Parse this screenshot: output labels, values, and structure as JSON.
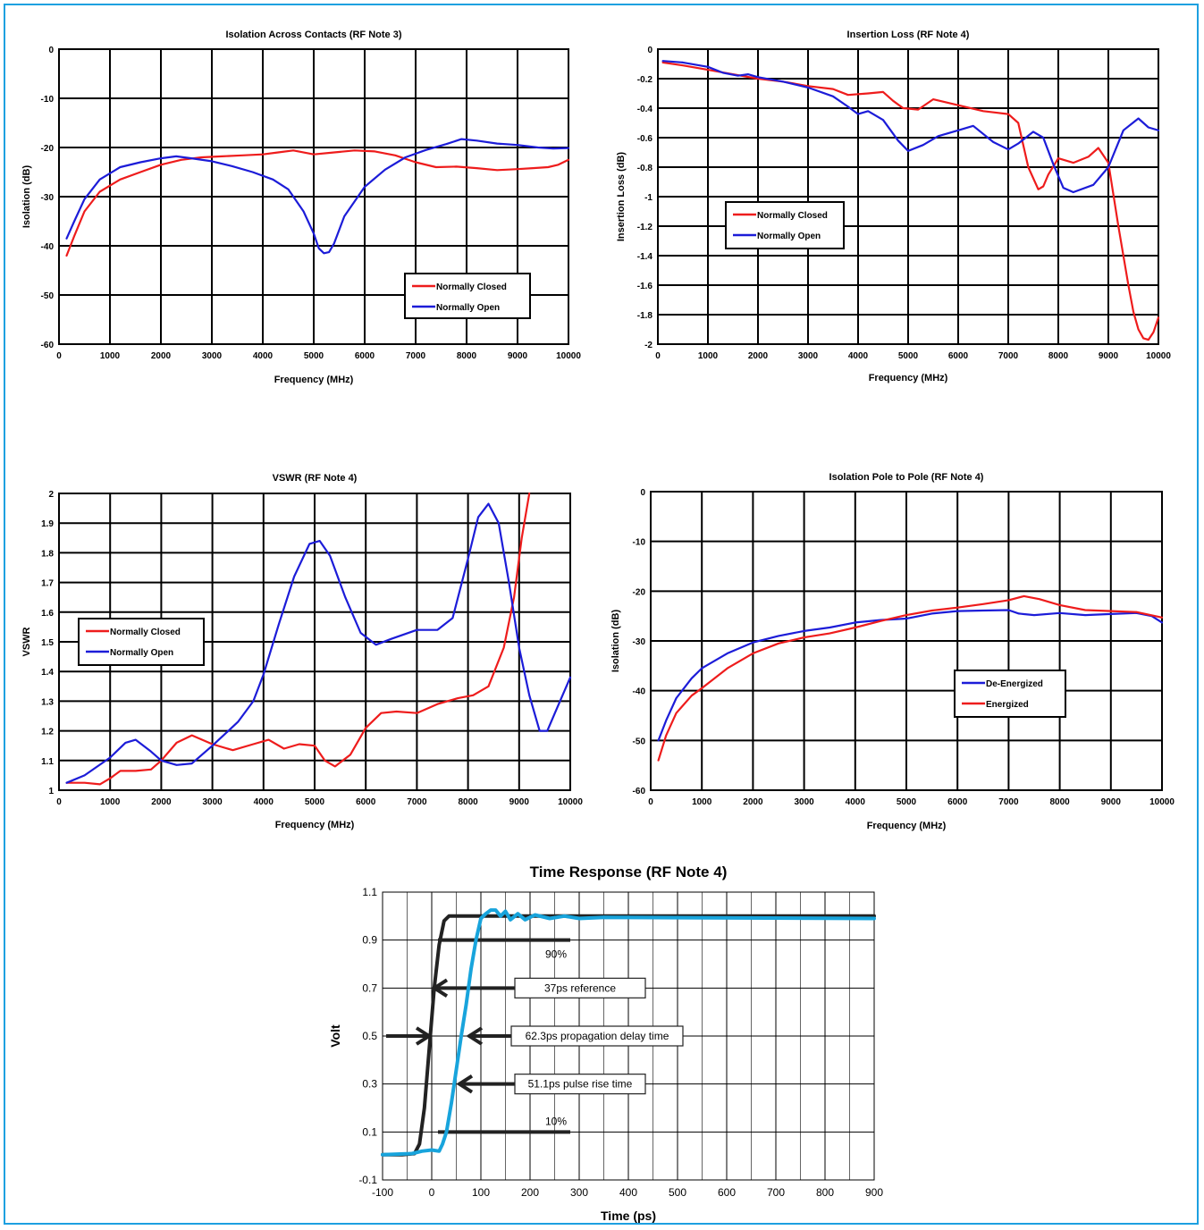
{
  "chart_data": [
    {
      "id": "iso_contacts",
      "type": "line",
      "title": "Isolation Across Contacts (RF Note 3)",
      "xlabel": "Frequency (MHz)",
      "ylabel": "Isolation (dB)",
      "xlim": [
        0,
        10000
      ],
      "ylim": [
        -60,
        0
      ],
      "xticks": [
        0,
        1000,
        2000,
        3000,
        4000,
        5000,
        6000,
        7000,
        8000,
        9000,
        10000
      ],
      "yticks": [
        0,
        -10,
        -20,
        -30,
        -40,
        -50,
        -60
      ],
      "grid": true,
      "legend": "bottom-right",
      "series": [
        {
          "name": "Normally Closed",
          "color": "#ee1c1c",
          "x": [
            150,
            300,
            500,
            800,
            1200,
            1600,
            2000,
            2400,
            2800,
            3200,
            3600,
            4000,
            4300,
            4600,
            5000,
            5400,
            5800,
            6200,
            6600,
            7000,
            7400,
            7800,
            8200,
            8600,
            9000,
            9300,
            9600,
            9800,
            10000
          ],
          "y": [
            -42,
            -38,
            -33,
            -29,
            -26.5,
            -25,
            -23.5,
            -22.5,
            -22,
            -21.8,
            -21.6,
            -21.4,
            -21,
            -20.6,
            -21.4,
            -21,
            -20.6,
            -20.8,
            -21.6,
            -23,
            -24,
            -23.9,
            -24.2,
            -24.6,
            -24.4,
            -24.2,
            -24,
            -23.5,
            -22.5
          ]
        },
        {
          "name": "Normally Open",
          "color": "#1c1cd8",
          "x": [
            150,
            300,
            500,
            800,
            1200,
            1600,
            2000,
            2300,
            2600,
            3000,
            3400,
            3800,
            4200,
            4500,
            4800,
            5000,
            5100,
            5200,
            5300,
            5400,
            5600,
            6000,
            6400,
            6800,
            7200,
            7600,
            7900,
            8200,
            8600,
            9000,
            9400,
            9700,
            10000
          ],
          "y": [
            -38.5,
            -35,
            -30.5,
            -26.5,
            -24,
            -23,
            -22.2,
            -21.8,
            -22.2,
            -22.8,
            -23.8,
            -25,
            -26.5,
            -28.5,
            -33,
            -37.5,
            -40.5,
            -41.5,
            -41.3,
            -39.5,
            -34,
            -28,
            -24.5,
            -22,
            -20.5,
            -19.3,
            -18.3,
            -18.6,
            -19.2,
            -19.5,
            -20,
            -20.2,
            -20.1
          ]
        }
      ]
    },
    {
      "id": "insertion_loss",
      "type": "line",
      "title": "Insertion Loss (RF Note 4)",
      "xlabel": "Frequency (MHz)",
      "ylabel": "Insertion Loss (dB)",
      "xlim": [
        0,
        10000
      ],
      "ylim": [
        -2,
        0
      ],
      "xticks": [
        0,
        1000,
        2000,
        3000,
        4000,
        5000,
        6000,
        7000,
        8000,
        9000,
        10000
      ],
      "yticks": [
        0,
        -0.2,
        -0.4,
        -0.6,
        -0.8,
        -1,
        -1.2,
        -1.4,
        -1.6,
        -1.8,
        -2
      ],
      "grid": true,
      "legend": "middle-left",
      "series": [
        {
          "name": "Normally Closed",
          "color": "#ee1c1c",
          "x": [
            100,
            500,
            1000,
            1500,
            2000,
            2500,
            3000,
            3500,
            3800,
            4200,
            4500,
            4700,
            4900,
            5200,
            5500,
            6000,
            6500,
            7000,
            7200,
            7400,
            7600,
            7700,
            7800,
            8000,
            8300,
            8600,
            8800,
            9000,
            9200,
            9400,
            9500,
            9600,
            9700,
            9800,
            9900,
            10000
          ],
          "y": [
            -0.09,
            -0.11,
            -0.14,
            -0.17,
            -0.2,
            -0.22,
            -0.25,
            -0.27,
            -0.31,
            -0.3,
            -0.29,
            -0.35,
            -0.4,
            -0.41,
            -0.34,
            -0.38,
            -0.42,
            -0.44,
            -0.5,
            -0.8,
            -0.95,
            -0.93,
            -0.85,
            -0.74,
            -0.77,
            -0.73,
            -0.67,
            -0.77,
            -1.2,
            -1.6,
            -1.78,
            -1.9,
            -1.96,
            -1.97,
            -1.92,
            -1.82
          ]
        },
        {
          "name": "Normally Open",
          "color": "#1c1cd8",
          "x": [
            100,
            500,
            1000,
            1300,
            1600,
            1800,
            2000,
            2500,
            3000,
            3500,
            3800,
            4000,
            4200,
            4500,
            4800,
            5000,
            5300,
            5600,
            6000,
            6300,
            6700,
            7000,
            7200,
            7500,
            7700,
            7900,
            8100,
            8300,
            8700,
            9000,
            9300,
            9600,
            9800,
            10000
          ],
          "y": [
            -0.08,
            -0.09,
            -0.12,
            -0.16,
            -0.18,
            -0.17,
            -0.19,
            -0.22,
            -0.26,
            -0.32,
            -0.39,
            -0.44,
            -0.42,
            -0.48,
            -0.62,
            -0.69,
            -0.65,
            -0.59,
            -0.55,
            -0.52,
            -0.63,
            -0.68,
            -0.64,
            -0.56,
            -0.6,
            -0.78,
            -0.94,
            -0.97,
            -0.92,
            -0.8,
            -0.55,
            -0.47,
            -0.53,
            -0.55
          ]
        }
      ]
    },
    {
      "id": "vswr",
      "type": "line",
      "title": "VSWR (RF Note 4)",
      "xlabel": "Frequency (MHz)",
      "ylabel": "VSWR",
      "xlim": [
        0,
        10000
      ],
      "ylim": [
        1,
        2
      ],
      "xticks": [
        0,
        1000,
        2000,
        3000,
        4000,
        5000,
        6000,
        7000,
        8000,
        9000,
        10000
      ],
      "yticks": [
        2,
        1.9,
        1.8,
        1.7,
        1.6,
        1.5,
        1.4,
        1.3,
        1.2,
        1.1,
        1
      ],
      "grid": true,
      "legend": "middle-left",
      "series": [
        {
          "name": "Normally Closed",
          "color": "#ee1c1c",
          "x": [
            150,
            500,
            800,
            1000,
            1200,
            1500,
            1800,
            2000,
            2300,
            2600,
            3000,
            3400,
            3800,
            4100,
            4400,
            4700,
            5000,
            5200,
            5400,
            5700,
            6000,
            6300,
            6600,
            7000,
            7400,
            7800,
            8100,
            8400,
            8700,
            8900,
            9050,
            9200
          ],
          "y": [
            1.025,
            1.025,
            1.02,
            1.04,
            1.065,
            1.065,
            1.07,
            1.1,
            1.16,
            1.185,
            1.155,
            1.135,
            1.155,
            1.17,
            1.14,
            1.155,
            1.15,
            1.1,
            1.08,
            1.12,
            1.21,
            1.26,
            1.265,
            1.26,
            1.29,
            1.31,
            1.32,
            1.35,
            1.48,
            1.65,
            1.85,
            2.0
          ]
        },
        {
          "name": "Normally Open",
          "color": "#1c1cd8",
          "x": [
            150,
            500,
            1000,
            1300,
            1500,
            1800,
            2000,
            2300,
            2600,
            3000,
            3500,
            3800,
            4000,
            4300,
            4600,
            4900,
            5100,
            5300,
            5600,
            5900,
            6200,
            6500,
            7000,
            7400,
            7700,
            8000,
            8200,
            8400,
            8600,
            8800,
            9000,
            9200,
            9400,
            9550,
            9700,
            10000
          ],
          "y": [
            1.025,
            1.05,
            1.11,
            1.16,
            1.17,
            1.13,
            1.1,
            1.085,
            1.09,
            1.15,
            1.23,
            1.3,
            1.39,
            1.56,
            1.72,
            1.83,
            1.84,
            1.79,
            1.65,
            1.53,
            1.49,
            1.51,
            1.54,
            1.54,
            1.58,
            1.78,
            1.92,
            1.965,
            1.9,
            1.7,
            1.48,
            1.32,
            1.2,
            1.2,
            1.26,
            1.38
          ]
        }
      ]
    },
    {
      "id": "iso_pole",
      "type": "line",
      "title": "Isolation Pole to Pole (RF Note 4)",
      "xlabel": "Frequency (MHz)",
      "ylabel": "Isolation (dB)",
      "xlim": [
        0,
        10000
      ],
      "ylim": [
        -60,
        0
      ],
      "xticks": [
        0,
        1000,
        2000,
        3000,
        4000,
        5000,
        6000,
        7000,
        8000,
        9000,
        10000
      ],
      "yticks": [
        0,
        -10,
        -20,
        -30,
        -40,
        -50,
        -60
      ],
      "grid": true,
      "legend": "bottom-right",
      "series": [
        {
          "name": "De-Energized",
          "color": "#1c1cd8",
          "x": [
            150,
            300,
            500,
            800,
            1000,
            1500,
            2000,
            2500,
            3000,
            3500,
            4000,
            4500,
            5000,
            5500,
            6000,
            6500,
            7000,
            7200,
            7500,
            8000,
            8500,
            9000,
            9500,
            9800,
            10000
          ],
          "y": [
            -50,
            -46,
            -41.5,
            -37.5,
            -35.5,
            -32.5,
            -30.3,
            -29,
            -28,
            -27.3,
            -26.3,
            -25.8,
            -25.5,
            -24.5,
            -24,
            -23.9,
            -23.8,
            -24.5,
            -24.8,
            -24.4,
            -24.8,
            -24.6,
            -24.4,
            -25,
            -26.3
          ]
        },
        {
          "name": "Energized",
          "color": "#ee1c1c",
          "x": [
            150,
            300,
            500,
            800,
            1000,
            1500,
            2000,
            2500,
            3000,
            3500,
            4000,
            4500,
            5000,
            5500,
            6000,
            6500,
            7000,
            7300,
            7600,
            8000,
            8500,
            9000,
            9500,
            10000
          ],
          "y": [
            -54,
            -49,
            -44.5,
            -41,
            -39.5,
            -35.5,
            -32.5,
            -30.5,
            -29.3,
            -28.5,
            -27.3,
            -26,
            -24.8,
            -23.9,
            -23.3,
            -22.6,
            -21.8,
            -21,
            -21.6,
            -22.8,
            -23.8,
            -24,
            -24.2,
            -25.3
          ]
        }
      ]
    },
    {
      "id": "time_response",
      "type": "line",
      "title": "Time Response (RF Note 4)",
      "xlabel": "Time (ps)",
      "ylabel": "Volt",
      "xlim": [
        -100,
        900
      ],
      "ylim": [
        -0.1,
        1.1
      ],
      "xticks": [
        -100,
        0,
        100,
        200,
        300,
        400,
        500,
        600,
        700,
        800,
        900
      ],
      "yticks": [
        1.1,
        0.9,
        0.7,
        0.5,
        0.3,
        0.1,
        -0.1
      ],
      "grid": true,
      "series": [
        {
          "color": "#222222",
          "x": [
            -100,
            -60,
            -35,
            -25,
            -15,
            -5,
            5,
            15,
            25,
            35,
            900
          ],
          "y": [
            0.005,
            0.005,
            0.01,
            0.05,
            0.2,
            0.45,
            0.7,
            0.88,
            0.98,
            1.0,
            1.0
          ]
        },
        {
          "color": "#18a4dc",
          "x": [
            -100,
            -40,
            -20,
            0,
            15,
            22,
            30,
            40,
            50,
            60,
            70,
            80,
            90,
            100,
            110,
            120,
            130,
            140,
            150,
            160,
            175,
            190,
            210,
            240,
            270,
            300,
            350,
            900
          ],
          "y": [
            0.005,
            0.01,
            0.02,
            0.025,
            0.02,
            0.05,
            0.1,
            0.22,
            0.36,
            0.5,
            0.63,
            0.78,
            0.9,
            0.99,
            1.01,
            1.025,
            1.025,
            1.0,
            1.02,
            0.985,
            1.01,
            0.985,
            1.005,
            0.99,
            1.0,
            0.99,
            0.995,
            0.99
          ]
        }
      ],
      "annotations": [
        {
          "text": "90%",
          "y": 0.9
        },
        {
          "text": "37ps reference",
          "y": 0.7
        },
        {
          "text": "62.3ps propagation delay time",
          "y": 0.5
        },
        {
          "text": "51.1ps pulse rise time",
          "y": 0.3
        },
        {
          "text": "10%",
          "y": 0.1
        }
      ]
    }
  ]
}
